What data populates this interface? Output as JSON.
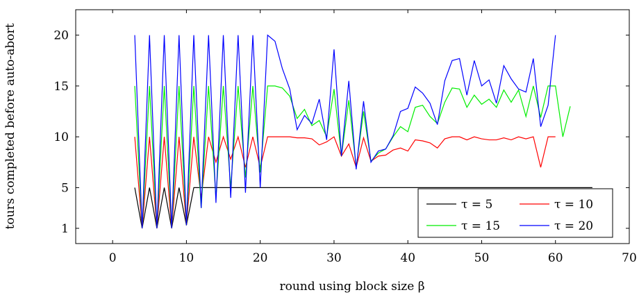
{
  "chart_data": {
    "type": "line",
    "xlabel": "round using block size β",
    "ylabel": "tours completed before auto-abort",
    "xlim": [
      -5,
      70
    ],
    "ylim": [
      -0.5,
      22.5
    ],
    "xticks": [
      0,
      10,
      20,
      30,
      40,
      50,
      60,
      70
    ],
    "yticks": [
      1,
      5,
      10,
      15,
      20
    ],
    "grid": false,
    "legend_position": "bottom-right",
    "series": [
      {
        "name": "τ = 5",
        "color": "#000000",
        "points": [
          [
            3,
            5
          ],
          [
            4,
            1
          ],
          [
            5,
            5
          ],
          [
            6,
            1
          ],
          [
            7,
            5
          ],
          [
            8,
            1
          ],
          [
            9,
            5
          ],
          [
            10,
            1.3
          ],
          [
            11,
            5
          ],
          [
            12,
            5
          ],
          [
            13,
            5
          ],
          [
            14,
            5
          ],
          [
            15,
            5
          ],
          [
            16,
            5
          ],
          [
            17,
            5
          ],
          [
            18,
            5
          ],
          [
            19,
            5
          ],
          [
            20,
            5
          ],
          [
            21,
            5
          ],
          [
            22,
            5
          ],
          [
            23,
            5
          ],
          [
            24,
            5
          ],
          [
            25,
            5
          ],
          [
            26,
            5
          ],
          [
            27,
            5
          ],
          [
            28,
            5
          ],
          [
            29,
            5
          ],
          [
            30,
            5
          ],
          [
            31,
            5
          ],
          [
            32,
            5
          ],
          [
            33,
            5
          ],
          [
            34,
            5
          ],
          [
            35,
            5
          ],
          [
            36,
            5
          ],
          [
            37,
            5
          ],
          [
            38,
            5
          ],
          [
            39,
            5
          ],
          [
            40,
            5
          ],
          [
            41,
            5
          ],
          [
            42,
            5
          ],
          [
            43,
            5
          ],
          [
            44,
            5
          ],
          [
            45,
            5
          ],
          [
            46,
            5
          ],
          [
            47,
            5
          ],
          [
            48,
            5
          ],
          [
            49,
            5
          ],
          [
            50,
            5
          ],
          [
            51,
            5
          ],
          [
            52,
            5
          ],
          [
            53,
            5
          ],
          [
            54,
            5
          ],
          [
            55,
            5
          ],
          [
            56,
            5
          ],
          [
            57,
            5
          ],
          [
            58,
            5
          ],
          [
            59,
            5
          ],
          [
            60,
            5
          ],
          [
            61,
            5
          ],
          [
            62,
            5
          ],
          [
            63,
            5
          ],
          [
            64,
            5
          ],
          [
            65,
            5
          ]
        ]
      },
      {
        "name": "τ = 10",
        "color": "#ff0000",
        "points": [
          [
            3,
            10
          ],
          [
            4,
            1
          ],
          [
            5,
            10
          ],
          [
            6,
            1
          ],
          [
            7,
            10
          ],
          [
            8,
            1
          ],
          [
            9,
            10
          ],
          [
            10,
            1.3
          ],
          [
            11,
            10
          ],
          [
            12,
            4
          ],
          [
            13,
            10
          ],
          [
            14,
            7.5
          ],
          [
            15,
            10
          ],
          [
            16,
            7.8
          ],
          [
            17,
            10
          ],
          [
            18,
            7
          ],
          [
            19,
            10
          ],
          [
            20,
            7
          ],
          [
            21,
            10
          ],
          [
            22,
            10
          ],
          [
            23,
            10
          ],
          [
            24,
            10
          ],
          [
            25,
            9.9
          ],
          [
            26,
            9.9
          ],
          [
            27,
            9.8
          ],
          [
            28,
            9.2
          ],
          [
            29,
            9.5
          ],
          [
            30,
            10
          ],
          [
            31,
            8.1
          ],
          [
            32,
            9.3
          ],
          [
            33,
            7
          ],
          [
            34,
            9.9
          ],
          [
            35,
            7.6
          ],
          [
            36,
            8.1
          ],
          [
            37,
            8.2
          ],
          [
            38,
            8.7
          ],
          [
            39,
            8.9
          ],
          [
            40,
            8.6
          ],
          [
            41,
            9.7
          ],
          [
            42,
            9.6
          ],
          [
            43,
            9.4
          ],
          [
            44,
            8.9
          ],
          [
            45,
            9.8
          ],
          [
            46,
            10
          ],
          [
            47,
            10
          ],
          [
            48,
            9.7
          ],
          [
            49,
            10
          ],
          [
            50,
            9.8
          ],
          [
            51,
            9.7
          ],
          [
            52,
            9.7
          ],
          [
            53,
            9.9
          ],
          [
            54,
            9.7
          ],
          [
            55,
            10
          ],
          [
            56,
            9.8
          ],
          [
            57,
            10
          ],
          [
            58,
            7
          ],
          [
            59,
            10
          ],
          [
            60,
            10
          ]
        ]
      },
      {
        "name": "τ = 15",
        "color": "#00ee00",
        "points": [
          [
            3,
            15
          ],
          [
            4,
            1
          ],
          [
            5,
            15
          ],
          [
            6,
            1
          ],
          [
            7,
            15
          ],
          [
            8,
            1
          ],
          [
            9,
            15
          ],
          [
            10,
            1.3
          ],
          [
            11,
            15
          ],
          [
            12,
            3
          ],
          [
            13,
            15
          ],
          [
            14,
            4
          ],
          [
            15,
            15
          ],
          [
            16,
            5
          ],
          [
            17,
            15
          ],
          [
            18,
            6
          ],
          [
            19,
            15
          ],
          [
            20,
            6.5
          ],
          [
            21,
            15
          ],
          [
            22,
            15
          ],
          [
            23,
            14.8
          ],
          [
            24,
            14
          ],
          [
            25,
            11.8
          ],
          [
            26,
            12.7
          ],
          [
            27,
            11.1
          ],
          [
            28,
            11.6
          ],
          [
            29,
            10
          ],
          [
            30,
            14.7
          ],
          [
            31,
            8.1
          ],
          [
            32,
            13.6
          ],
          [
            33,
            7
          ],
          [
            34,
            12.5
          ],
          [
            35,
            7.6
          ],
          [
            36,
            8.4
          ],
          [
            37,
            8.8
          ],
          [
            38,
            10
          ],
          [
            39,
            11
          ],
          [
            40,
            10.5
          ],
          [
            41,
            12.9
          ],
          [
            42,
            13.1
          ],
          [
            43,
            12
          ],
          [
            44,
            11.3
          ],
          [
            45,
            13.4
          ],
          [
            46,
            14.8
          ],
          [
            47,
            14.7
          ],
          [
            48,
            12.9
          ],
          [
            49,
            14.1
          ],
          [
            50,
            13.2
          ],
          [
            51,
            13.7
          ],
          [
            52,
            12.9
          ],
          [
            53,
            14.6
          ],
          [
            54,
            13.4
          ],
          [
            55,
            14.6
          ],
          [
            56,
            12
          ],
          [
            57,
            15
          ],
          [
            58,
            11.9
          ],
          [
            59,
            15
          ],
          [
            60,
            15
          ],
          [
            61,
            10
          ],
          [
            62,
            13
          ]
        ]
      },
      {
        "name": "τ = 20",
        "color": "#0000ff",
        "points": [
          [
            3,
            20
          ],
          [
            4,
            1
          ],
          [
            5,
            20
          ],
          [
            6,
            1
          ],
          [
            7,
            20
          ],
          [
            8,
            1
          ],
          [
            9,
            20
          ],
          [
            10,
            1.3
          ],
          [
            11,
            20
          ],
          [
            12,
            3
          ],
          [
            13,
            20
          ],
          [
            14,
            3.5
          ],
          [
            15,
            20
          ],
          [
            16,
            4
          ],
          [
            17,
            20
          ],
          [
            18,
            4.5
          ],
          [
            19,
            20
          ],
          [
            20,
            5
          ],
          [
            21,
            20
          ],
          [
            22,
            19.4
          ],
          [
            23,
            16.7
          ],
          [
            24,
            14.7
          ],
          [
            25,
            10.7
          ],
          [
            26,
            12.1
          ],
          [
            27,
            11.3
          ],
          [
            28,
            13.7
          ],
          [
            29,
            9.7
          ],
          [
            30,
            18.6
          ],
          [
            31,
            8.1
          ],
          [
            32,
            15.5
          ],
          [
            33,
            6.8
          ],
          [
            34,
            13.5
          ],
          [
            35,
            7.5
          ],
          [
            36,
            8.6
          ],
          [
            37,
            8.8
          ],
          [
            38,
            10.1
          ],
          [
            39,
            12.5
          ],
          [
            40,
            12.8
          ],
          [
            41,
            14.9
          ],
          [
            42,
            14.3
          ],
          [
            43,
            13.3
          ],
          [
            44,
            11.2
          ],
          [
            45,
            15.5
          ],
          [
            46,
            17.5
          ],
          [
            47,
            17.7
          ],
          [
            48,
            14.1
          ],
          [
            49,
            17.5
          ],
          [
            50,
            15
          ],
          [
            51,
            15.6
          ],
          [
            52,
            13.3
          ],
          [
            53,
            17
          ],
          [
            54,
            15.7
          ],
          [
            55,
            14.7
          ],
          [
            56,
            14.4
          ],
          [
            57,
            17.7
          ],
          [
            58,
            11
          ],
          [
            59,
            13.1
          ],
          [
            60,
            20
          ]
        ]
      }
    ]
  }
}
